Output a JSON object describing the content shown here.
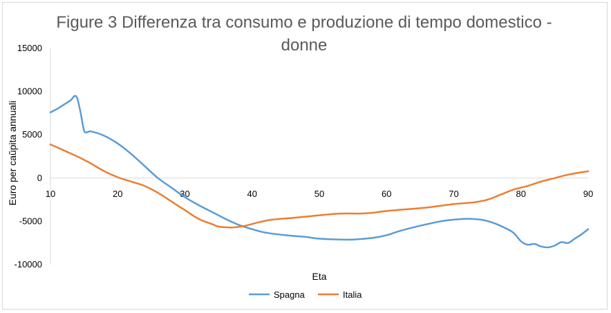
{
  "chart_data": {
    "type": "line",
    "title_line1": "Figure 3 Differenza tra consumo e produzione di tempo domestico -",
    "title_line2": "donne",
    "xlabel": "Eta",
    "ylabel": "Euro per caŭpita annuali",
    "xlim": [
      10,
      90
    ],
    "ylim": [
      -10000,
      15000
    ],
    "x_ticks": [
      10,
      20,
      30,
      40,
      50,
      60,
      70,
      80,
      90
    ],
    "y_ticks": [
      15000,
      10000,
      5000,
      0,
      -5000,
      -10000
    ],
    "grid": false,
    "legend_position": "bottom",
    "series": [
      {
        "name": "Spagna",
        "color": "#5b9bd5",
        "points": [
          [
            10,
            7600
          ],
          [
            11,
            8000
          ],
          [
            12,
            8500
          ],
          [
            13,
            9000
          ],
          [
            13.6,
            9500
          ],
          [
            14,
            9200
          ],
          [
            14.5,
            7500
          ],
          [
            15,
            5500
          ],
          [
            15.5,
            5300
          ],
          [
            16,
            5400
          ],
          [
            18,
            4900
          ],
          [
            20,
            4000
          ],
          [
            22,
            2800
          ],
          [
            24,
            1400
          ],
          [
            26,
            0
          ],
          [
            28,
            -1100
          ],
          [
            30,
            -2200
          ],
          [
            32,
            -3100
          ],
          [
            34,
            -3900
          ],
          [
            36,
            -4700
          ],
          [
            38,
            -5400
          ],
          [
            40,
            -5900
          ],
          [
            42,
            -6300
          ],
          [
            45,
            -6600
          ],
          [
            48,
            -6800
          ],
          [
            50,
            -7000
          ],
          [
            53,
            -7100
          ],
          [
            55,
            -7100
          ],
          [
            58,
            -6900
          ],
          [
            60,
            -6600
          ],
          [
            62,
            -6100
          ],
          [
            65,
            -5500
          ],
          [
            68,
            -5000
          ],
          [
            70,
            -4800
          ],
          [
            72,
            -4700
          ],
          [
            74,
            -4800
          ],
          [
            76,
            -5200
          ],
          [
            78,
            -5900
          ],
          [
            79,
            -6400
          ],
          [
            80,
            -7300
          ],
          [
            81,
            -7700
          ],
          [
            82,
            -7600
          ],
          [
            83,
            -7900
          ],
          [
            84,
            -8000
          ],
          [
            85,
            -7800
          ],
          [
            86,
            -7400
          ],
          [
            87,
            -7500
          ],
          [
            88,
            -7000
          ],
          [
            89,
            -6500
          ],
          [
            90,
            -5900
          ]
        ]
      },
      {
        "name": "Italia",
        "color": "#ed7d31",
        "points": [
          [
            10,
            3900
          ],
          [
            12,
            3200
          ],
          [
            14,
            2500
          ],
          [
            16,
            1700
          ],
          [
            18,
            800
          ],
          [
            20,
            100
          ],
          [
            22,
            -400
          ],
          [
            24,
            -900
          ],
          [
            26,
            -1700
          ],
          [
            28,
            -2700
          ],
          [
            30,
            -3700
          ],
          [
            32,
            -4700
          ],
          [
            34,
            -5300
          ],
          [
            35,
            -5600
          ],
          [
            37,
            -5700
          ],
          [
            39,
            -5500
          ],
          [
            41,
            -5100
          ],
          [
            43,
            -4800
          ],
          [
            46,
            -4600
          ],
          [
            50,
            -4300
          ],
          [
            53,
            -4100
          ],
          [
            56,
            -4100
          ],
          [
            58,
            -4000
          ],
          [
            60,
            -3800
          ],
          [
            63,
            -3600
          ],
          [
            66,
            -3400
          ],
          [
            70,
            -3000
          ],
          [
            73,
            -2800
          ],
          [
            75,
            -2500
          ],
          [
            77,
            -1900
          ],
          [
            79,
            -1300
          ],
          [
            81,
            -900
          ],
          [
            83,
            -400
          ],
          [
            85,
            0
          ],
          [
            87,
            400
          ],
          [
            90,
            800
          ]
        ]
      }
    ]
  }
}
